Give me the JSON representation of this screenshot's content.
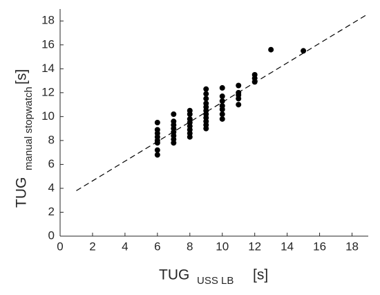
{
  "chart_data": {
    "type": "scatter",
    "xlabel": "TUG",
    "xlabel_sub": "USS LB",
    "xlabel_unit": "[s]",
    "ylabel": "TUG",
    "ylabel_sub": "manual stopwatch",
    "ylabel_unit": "[s]",
    "xlim": [
      0,
      19
    ],
    "ylim": [
      0,
      19
    ],
    "xticks": [
      0,
      2,
      4,
      6,
      8,
      10,
      12,
      14,
      16,
      18
    ],
    "yticks": [
      0,
      2,
      4,
      6,
      8,
      10,
      12,
      14,
      16,
      18
    ],
    "series": [
      {
        "color": "#000000",
        "x": [
          6,
          6,
          6,
          6,
          6,
          6,
          6,
          6,
          7,
          7,
          7,
          7,
          7,
          7,
          7,
          7,
          8,
          8,
          8,
          8,
          8,
          8,
          8,
          8,
          9,
          9,
          9,
          9,
          9,
          9,
          9,
          9,
          9,
          9,
          9,
          10,
          10,
          10,
          10,
          10,
          10,
          10,
          11,
          11,
          11,
          11,
          11,
          12,
          12,
          12,
          13,
          15
        ],
        "y": [
          6.8,
          7.2,
          7.8,
          8.0,
          8.3,
          8.6,
          8.9,
          9.5,
          7.8,
          8.1,
          8.4,
          8.7,
          9.0,
          9.3,
          9.6,
          10.2,
          8.3,
          8.6,
          8.9,
          9.2,
          9.5,
          9.8,
          10.2,
          10.5,
          9.0,
          9.3,
          9.6,
          9.9,
          10.2,
          10.5,
          10.8,
          11.1,
          11.5,
          11.9,
          12.3,
          9.8,
          10.2,
          10.6,
          10.9,
          11.3,
          11.7,
          12.4,
          11.0,
          11.5,
          11.8,
          12.0,
          12.6,
          12.9,
          13.2,
          13.5,
          15.6,
          15.5
        ]
      }
    ],
    "fit_line": {
      "x": [
        1,
        19
      ],
      "y": [
        3.8,
        18.6
      ],
      "color": "#000000"
    }
  }
}
